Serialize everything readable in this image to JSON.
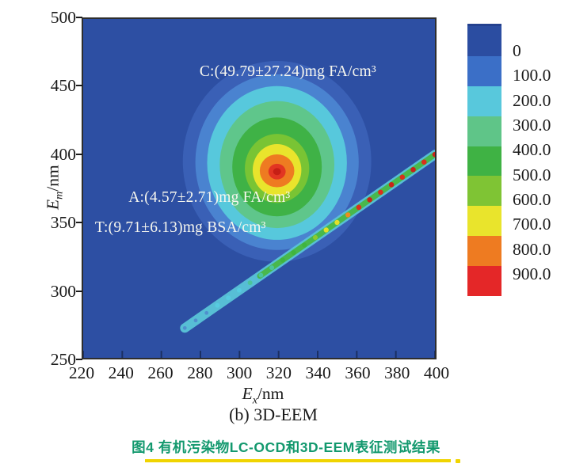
{
  "figure": {
    "panel_label": "(b) 3D-EEM",
    "caption_cn": "图4  有机污染物LC-OCD和3D-EEM表征测试结果",
    "colors": {
      "caption_green": "#13996e",
      "underline_yellow": "#f0d400",
      "plot_background": "#2d4fa3",
      "peak_core_red": "#e23522"
    }
  },
  "chart_data": {
    "type": "heatmap",
    "subtype": "3D-EEM excitation-emission matrix fluorescence contour plot",
    "title": "",
    "xlabel": {
      "variable": "E",
      "subscript": "x",
      "unit": "/nm"
    },
    "ylabel": {
      "variable": "E",
      "subscript": "m",
      "unit": "/nm"
    },
    "xlim": [
      220,
      400
    ],
    "ylim": [
      250,
      500
    ],
    "x_ticks": [
      220,
      240,
      260,
      280,
      300,
      320,
      340,
      360,
      380,
      400
    ],
    "y_ticks": [
      500,
      450,
      400,
      350,
      300,
      250
    ],
    "grid": false,
    "legend_position": "colorbar-right",
    "colorbar": {
      "values": [
        0,
        100,
        200,
        300,
        400,
        500,
        600,
        700,
        800,
        900
      ],
      "tick_labels": [
        "0",
        "100.0",
        "200.0",
        "300.0",
        "400.0",
        "500.0",
        "600.0",
        "700.0",
        "800.0",
        "900.0"
      ],
      "segment_colors": [
        "#2b4da1",
        "#3b6fc7",
        "#58c8dc",
        "#5fc588",
        "#3fb244",
        "#7fc434",
        "#e9e42c",
        "#ee7b21",
        "#e42728"
      ]
    },
    "main_peak": {
      "ex_nm": 320,
      "em_nm": 388,
      "approx_intensity": 900
    },
    "rayleigh_scatter_line": {
      "from": {
        "ex_nm": 272,
        "em_nm": 272
      },
      "to": {
        "ex_nm": 400,
        "em_nm": 400
      }
    },
    "annotations": [
      {
        "id": "C",
        "text": "C:(49.79±27.24)mg FA/cm³",
        "value": 49.79,
        "uncertainty": 27.24,
        "unit": "mg FA/cm³",
        "ex_nm": 279,
        "em_nm": 461
      },
      {
        "id": "A",
        "text": "A:(4.57±2.71)mg FA/cm³",
        "value": 4.57,
        "uncertainty": 2.71,
        "unit": "mg FA/cm³",
        "ex_nm": 243,
        "em_nm": 369
      },
      {
        "id": "T",
        "text": "T:(9.71±6.13)mg BSA/cm³",
        "value": 9.71,
        "uncertainty": 6.13,
        "unit": "mg BSA/cm³",
        "ex_nm": 226,
        "em_nm": 347
      }
    ]
  }
}
